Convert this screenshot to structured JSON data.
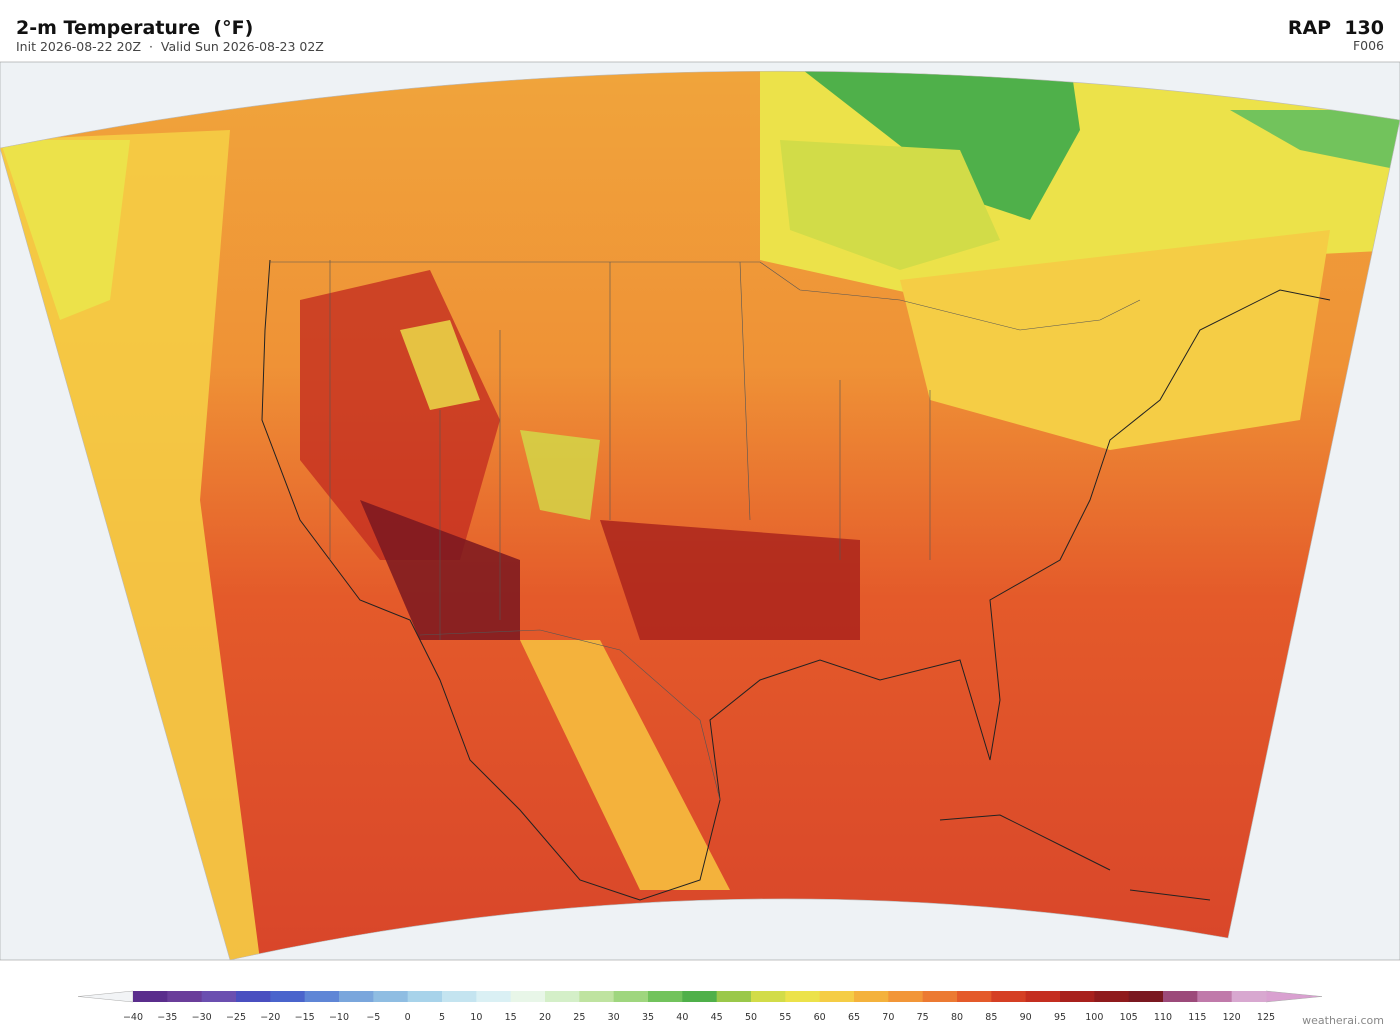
{
  "header": {
    "title": "2-m Temperature  (°F)",
    "subtitle": "Init 2026-08-22 20Z  ·  Valid Sun 2026-08-23 02Z",
    "model": "RAP  130",
    "forecast_hour": "F006"
  },
  "colorbar": {
    "labels": [
      "−40",
      "−35",
      "−30",
      "−25",
      "−20",
      "−15",
      "−10",
      "−5",
      "0",
      "5",
      "10",
      "15",
      "20",
      "25",
      "30",
      "35",
      "40",
      "45",
      "50",
      "55",
      "60",
      "65",
      "70",
      "75",
      "80",
      "85",
      "90",
      "95",
      "100",
      "105",
      "110",
      "115",
      "120",
      "125"
    ],
    "colors": [
      "#5a2d8c",
      "#6a3d9a",
      "#6b4fb0",
      "#4a4fc0",
      "#4a64cc",
      "#5f86d6",
      "#7aa6dc",
      "#8fbde2",
      "#a8d3ea",
      "#c4e4f0",
      "#daf0f4",
      "#e8f6e8",
      "#d4efc8",
      "#bfe3a0",
      "#9fd67e",
      "#72c35c",
      "#4fb04a",
      "#9ac84a",
      "#d2dc48",
      "#ece24a",
      "#f5cd45",
      "#f4b23c",
      "#f29638",
      "#ec7a32",
      "#e45a2a",
      "#d53f24",
      "#c42e20",
      "#a8201c",
      "#8f1a1c",
      "#7a1820",
      "#9c4a7a",
      "#c07aaa",
      "#d8a8d0"
    ]
  },
  "watermark": "weatherai.com"
}
